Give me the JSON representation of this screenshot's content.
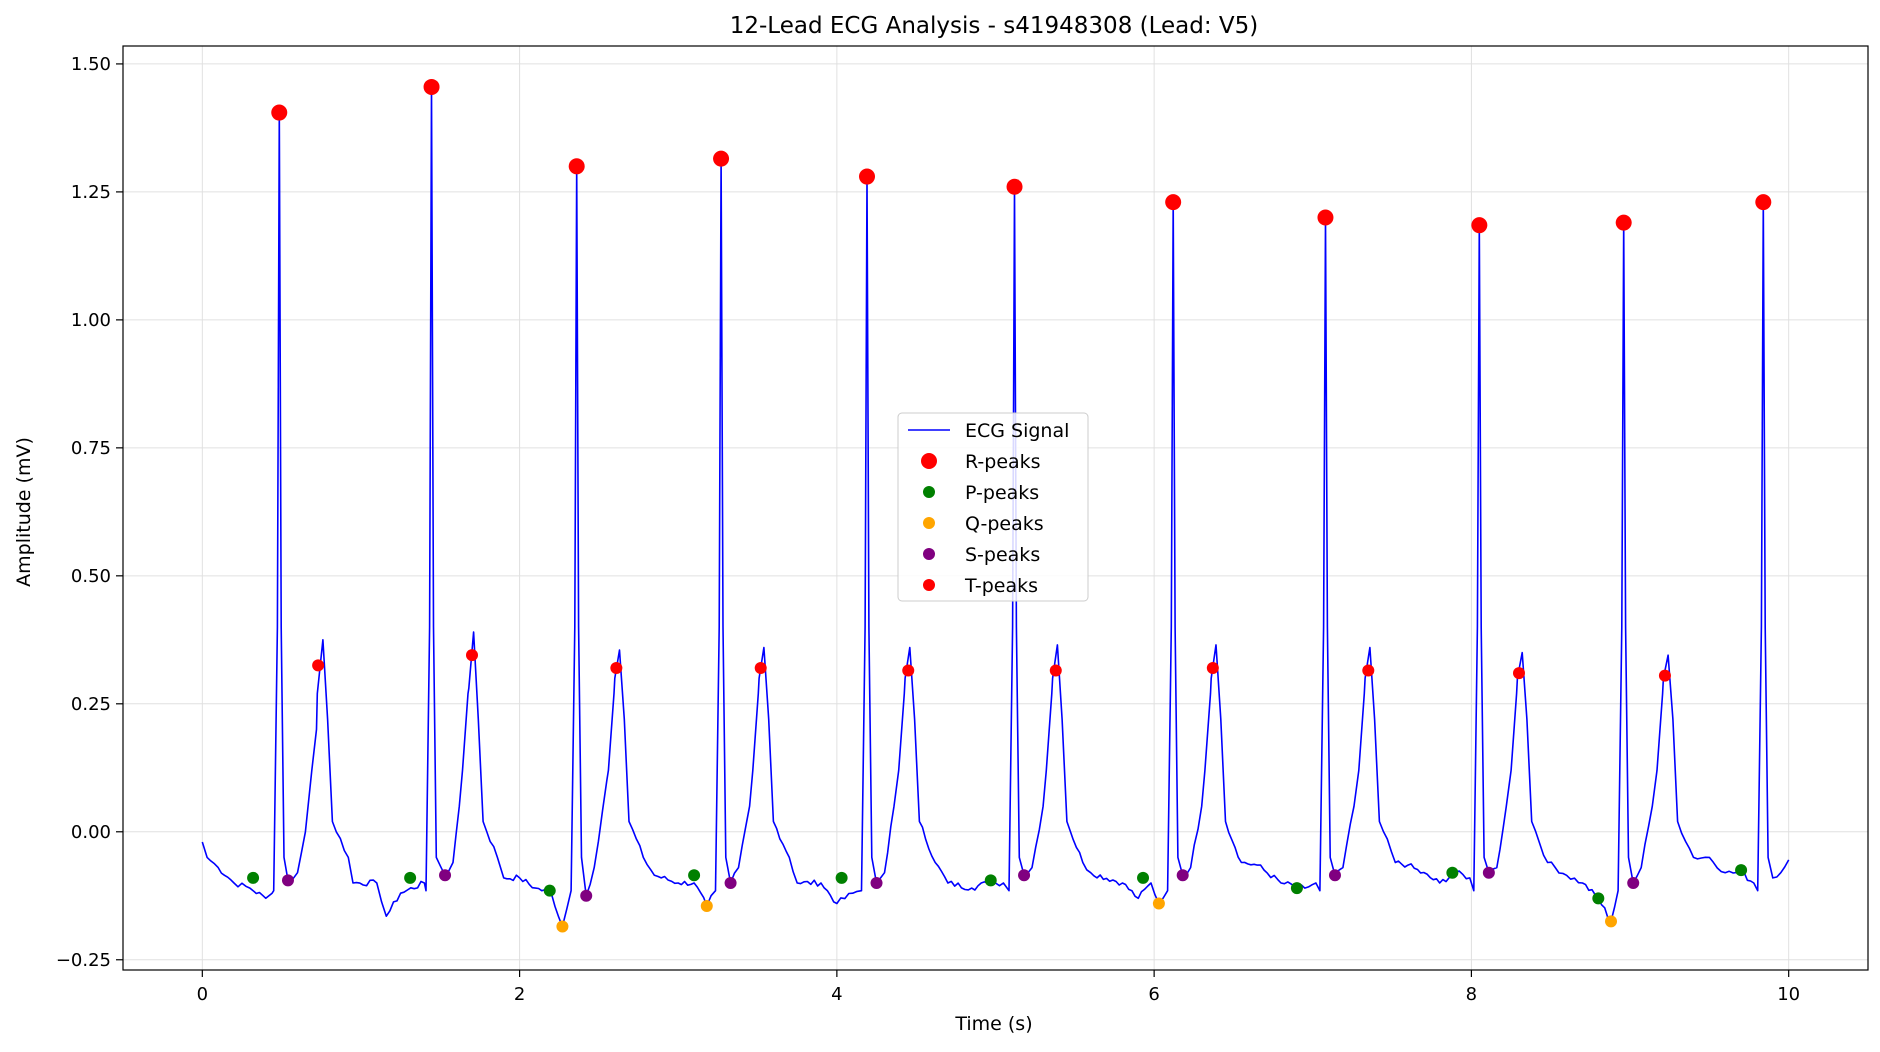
{
  "chart_data": {
    "type": "line",
    "title": "12-Lead ECG Analysis - s41948308 (Lead: V5)",
    "xlabel": "Time (s)",
    "ylabel": "Amplitude (mV)",
    "xlim": [
      -0.5,
      10.5
    ],
    "ylim": [
      -0.27,
      1.535
    ],
    "xticks": [
      0,
      2,
      4,
      6,
      8,
      10
    ],
    "xtick_labels": [
      "0",
      "2",
      "4",
      "6",
      "8",
      "10"
    ],
    "yticks": [
      -0.25,
      0.0,
      0.25,
      0.5,
      0.75,
      1.0,
      1.25,
      1.5
    ],
    "ytick_labels": [
      "−0.25",
      "0.00",
      "0.25",
      "0.50",
      "0.75",
      "1.00",
      "1.25",
      "1.50"
    ],
    "grid": true,
    "legend_position": "center",
    "series": [
      {
        "name": "ECG Signal",
        "kind": "line",
        "color": "#0000ff",
        "beats": [
          {
            "q": null,
            "r": [
              0.485,
              1.405
            ],
            "s": [
              0.54,
              -0.095
            ],
            "t_peak": [
              0.76,
              0.375
            ],
            "t_end": 0.9
          },
          {
            "q": null,
            "r": [
              1.445,
              1.455
            ],
            "s": [
              1.53,
              -0.085
            ],
            "t_peak": [
              1.71,
              0.39
            ],
            "t_end": 1.84
          },
          {
            "q": [
              2.27,
              -0.185
            ],
            "r": [
              2.36,
              1.3
            ],
            "s": [
              2.42,
              -0.125
            ],
            "t_peak": [
              2.63,
              0.355
            ],
            "t_end": 2.76
          },
          {
            "q": [
              3.18,
              -0.145
            ],
            "r": [
              3.27,
              1.315
            ],
            "s": [
              3.33,
              -0.1
            ],
            "t_peak": [
              3.54,
              0.36
            ],
            "t_end": 3.67
          },
          {
            "q": null,
            "r": [
              4.19,
              1.28
            ],
            "s": [
              4.25,
              -0.1
            ],
            "t_peak": [
              4.46,
              0.36
            ],
            "t_end": 4.59
          },
          {
            "q": null,
            "r": [
              5.12,
              1.26
            ],
            "s": [
              5.18,
              -0.085
            ],
            "t_peak": [
              5.39,
              0.365
            ],
            "t_end": 5.52
          },
          {
            "q": [
              6.03,
              -0.14
            ],
            "r": [
              6.12,
              1.23
            ],
            "s": [
              6.18,
              -0.085
            ],
            "t_peak": [
              6.39,
              0.365
            ],
            "t_end": 6.52
          },
          {
            "q": null,
            "r": [
              7.08,
              1.2
            ],
            "s": [
              7.14,
              -0.085
            ],
            "t_peak": [
              7.36,
              0.36
            ],
            "t_end": 7.49
          },
          {
            "q": null,
            "r": [
              8.05,
              1.185
            ],
            "s": [
              8.11,
              -0.08
            ],
            "t_peak": [
              8.32,
              0.35
            ],
            "t_end": 8.45
          },
          {
            "q": [
              8.88,
              -0.175
            ],
            "r": [
              8.96,
              1.19
            ],
            "s": [
              9.02,
              -0.1
            ],
            "t_peak": [
              9.24,
              0.345
            ],
            "t_end": 9.37
          },
          {
            "q": null,
            "r": [
              9.84,
              1.23
            ],
            "s": null,
            "t_peak": null,
            "t_end": null
          }
        ],
        "baseline": [
          [
            0.0,
            -0.02
          ],
          [
            0.03,
            -0.05
          ],
          [
            0.1,
            -0.07
          ],
          [
            0.2,
            -0.1
          ],
          [
            0.3,
            -0.11
          ],
          [
            0.4,
            -0.13
          ],
          [
            0.44,
            -0.12
          ],
          [
            0.6,
            -0.08
          ],
          [
            0.65,
            0.0
          ],
          [
            0.72,
            0.2
          ],
          [
            0.92,
            -0.05
          ],
          [
            0.95,
            -0.1
          ],
          [
            1.1,
            -0.1
          ],
          [
            1.16,
            -0.165
          ],
          [
            1.25,
            -0.12
          ],
          [
            1.4,
            -0.1
          ],
          [
            1.58,
            -0.06
          ],
          [
            1.62,
            0.05
          ],
          [
            1.68,
            0.28
          ],
          [
            1.86,
            -0.05
          ],
          [
            1.9,
            -0.09
          ],
          [
            2.0,
            -0.09
          ],
          [
            2.1,
            -0.11
          ],
          [
            2.2,
            -0.12
          ],
          [
            2.47,
            -0.07
          ],
          [
            2.55,
            0.1
          ],
          [
            2.6,
            0.3
          ],
          [
            2.78,
            -0.05
          ],
          [
            2.85,
            -0.085
          ],
          [
            3.0,
            -0.1
          ],
          [
            3.1,
            -0.1
          ],
          [
            3.38,
            -0.07
          ],
          [
            3.45,
            0.05
          ],
          [
            3.51,
            0.3
          ],
          [
            3.7,
            -0.05
          ],
          [
            3.75,
            -0.1
          ],
          [
            3.9,
            -0.1
          ],
          [
            4.0,
            -0.14
          ],
          [
            4.1,
            -0.12
          ],
          [
            4.3,
            -0.08
          ],
          [
            4.36,
            0.05
          ],
          [
            4.43,
            0.3
          ],
          [
            4.62,
            -0.06
          ],
          [
            4.7,
            -0.1
          ],
          [
            4.85,
            -0.11
          ],
          [
            4.95,
            -0.1
          ],
          [
            5.05,
            -0.1
          ],
          [
            5.23,
            -0.07
          ],
          [
            5.3,
            0.05
          ],
          [
            5.36,
            0.3
          ],
          [
            5.55,
            -0.06
          ],
          [
            5.6,
            -0.08
          ],
          [
            5.8,
            -0.1
          ],
          [
            5.9,
            -0.13
          ],
          [
            5.98,
            -0.1
          ],
          [
            6.23,
            -0.07
          ],
          [
            6.3,
            0.05
          ],
          [
            6.36,
            0.3
          ],
          [
            6.55,
            -0.06
          ],
          [
            6.65,
            -0.065
          ],
          [
            6.8,
            -0.1
          ],
          [
            6.95,
            -0.11
          ],
          [
            7.02,
            -0.1
          ],
          [
            7.19,
            -0.07
          ],
          [
            7.26,
            0.05
          ],
          [
            7.33,
            0.3
          ],
          [
            7.52,
            -0.06
          ],
          [
            7.6,
            -0.065
          ],
          [
            7.8,
            -0.1
          ],
          [
            7.9,
            -0.08
          ],
          [
            7.99,
            -0.09
          ],
          [
            8.16,
            -0.07
          ],
          [
            8.22,
            0.05
          ],
          [
            8.29,
            0.3
          ],
          [
            8.48,
            -0.06
          ],
          [
            8.6,
            -0.085
          ],
          [
            8.7,
            -0.1
          ],
          [
            8.8,
            -0.13
          ],
          [
            9.07,
            -0.07
          ],
          [
            9.14,
            0.05
          ],
          [
            9.21,
            0.3
          ],
          [
            9.4,
            -0.05
          ],
          [
            9.5,
            -0.05
          ],
          [
            9.6,
            -0.08
          ],
          [
            9.7,
            -0.08
          ],
          [
            9.78,
            -0.1
          ],
          [
            9.9,
            -0.09
          ],
          [
            9.95,
            -0.08
          ],
          [
            10.0,
            -0.055
          ]
        ]
      },
      {
        "name": "R-peaks",
        "kind": "marker",
        "color": "#ff0000",
        "size": "large",
        "x": [
          0.485,
          1.445,
          2.36,
          3.27,
          4.19,
          5.12,
          6.12,
          7.08,
          8.05,
          8.96,
          9.84
        ],
        "y": [
          1.405,
          1.455,
          1.3,
          1.315,
          1.28,
          1.26,
          1.23,
          1.2,
          1.185,
          1.19,
          1.23
        ]
      },
      {
        "name": "P-peaks",
        "kind": "marker",
        "color": "#008000",
        "size": "small",
        "x": [
          0.32,
          1.31,
          2.19,
          3.1,
          4.03,
          4.97,
          5.93,
          6.9,
          7.88,
          8.8,
          9.7
        ],
        "y": [
          -0.09,
          -0.09,
          -0.115,
          -0.085,
          -0.09,
          -0.095,
          -0.09,
          -0.11,
          -0.08,
          -0.13,
          -0.075
        ]
      },
      {
        "name": "Q-peaks",
        "kind": "marker",
        "color": "#ffa500",
        "size": "small",
        "x": [
          2.27,
          3.18,
          6.03,
          8.88
        ],
        "y": [
          -0.185,
          -0.145,
          -0.14,
          -0.175
        ]
      },
      {
        "name": "S-peaks",
        "kind": "marker",
        "color": "#800080",
        "size": "small",
        "x": [
          0.54,
          1.53,
          2.42,
          3.33,
          4.25,
          5.18,
          6.18,
          7.14,
          8.11,
          9.02
        ],
        "y": [
          -0.095,
          -0.085,
          -0.125,
          -0.1,
          -0.1,
          -0.085,
          -0.085,
          -0.085,
          -0.08,
          -0.1
        ]
      },
      {
        "name": "T-peaks",
        "kind": "marker",
        "color": "#ff0000",
        "size": "small",
        "x": [
          0.73,
          1.7,
          2.61,
          3.52,
          4.45,
          5.38,
          6.37,
          7.35,
          8.3,
          9.22
        ],
        "y": [
          0.325,
          0.345,
          0.32,
          0.32,
          0.315,
          0.315,
          0.32,
          0.315,
          0.31,
          0.305
        ]
      }
    ]
  }
}
